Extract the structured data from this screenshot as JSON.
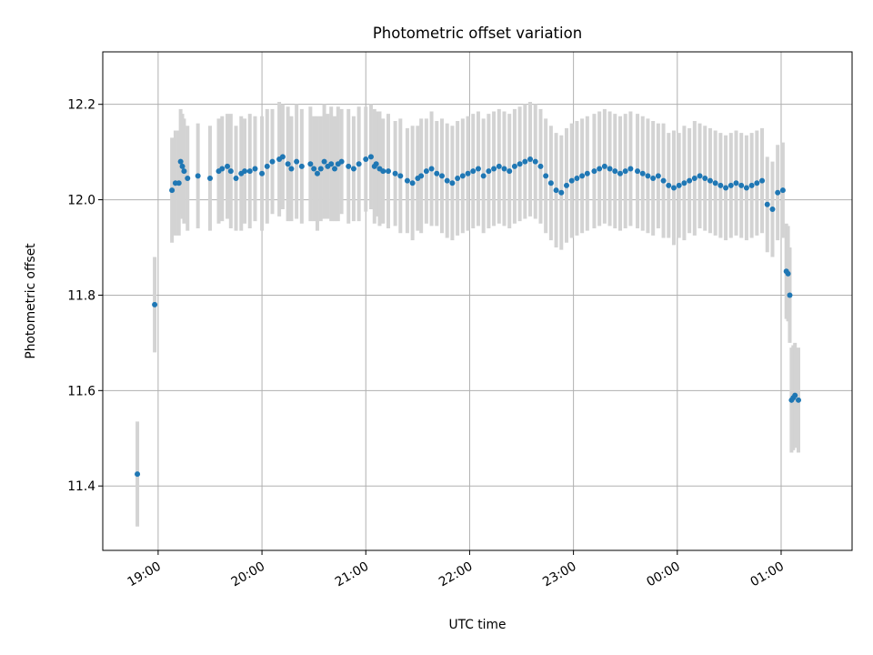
{
  "chart_data": {
    "type": "scatter",
    "title": "Photometric offset variation",
    "xlabel": "UTC time",
    "ylabel": "Photometric offset",
    "grid": true,
    "xlim": [
      "18:28",
      "01:41"
    ],
    "ylim": [
      11.265,
      12.31
    ],
    "xticks": [
      "19:00",
      "20:00",
      "21:00",
      "22:00",
      "23:00",
      "00:00",
      "01:00"
    ],
    "yticks": [
      11.4,
      11.6,
      11.8,
      12.0,
      12.2
    ],
    "point_color": "#1f77b4",
    "errorbar_color": "#d3d3d3",
    "series": [
      {
        "x": [
          "18:48",
          "18:58",
          "19:08",
          "19:10",
          "19:12",
          "19:13",
          "19:14",
          "19:15",
          "19:17",
          "19:23",
          "19:30",
          "19:35",
          "19:37",
          "19:40",
          "19:42",
          "19:45",
          "19:48",
          "19:50",
          "19:53",
          "19:56",
          "20:00",
          "20:03",
          "20:06",
          "20:10",
          "20:12",
          "20:15",
          "20:17",
          "20:20",
          "20:23",
          "20:28",
          "20:30",
          "20:32",
          "20:34",
          "20:36",
          "20:38",
          "20:40",
          "20:42",
          "20:44",
          "20:46",
          "20:50",
          "20:53",
          "20:56",
          "21:00",
          "21:03",
          "21:05",
          "21:06",
          "21:08",
          "21:10",
          "21:13",
          "21:17",
          "21:20",
          "21:24",
          "21:27",
          "21:30",
          "21:32",
          "21:35",
          "21:38",
          "21:41",
          "21:44",
          "21:47",
          "21:50",
          "21:53",
          "21:56",
          "21:59",
          "22:02",
          "22:05",
          "22:08",
          "22:11",
          "22:14",
          "22:17",
          "22:20",
          "22:23",
          "22:26",
          "22:29",
          "22:32",
          "22:35",
          "22:38",
          "22:41",
          "22:44",
          "22:47",
          "22:50",
          "22:53",
          "22:56",
          "22:59",
          "23:02",
          "23:05",
          "23:08",
          "23:12",
          "23:15",
          "23:18",
          "23:21",
          "23:24",
          "23:27",
          "23:30",
          "23:33",
          "23:37",
          "23:40",
          "23:43",
          "23:46",
          "23:49",
          "23:52",
          "23:55",
          "23:58",
          "00:01",
          "00:04",
          "00:07",
          "00:10",
          "00:13",
          "00:16",
          "00:19",
          "00:22",
          "00:25",
          "00:28",
          "00:31",
          "00:34",
          "00:37",
          "00:40",
          "00:43",
          "00:46",
          "00:49",
          "00:52",
          "00:55",
          "00:58",
          "01:01",
          "01:03",
          "01:04",
          "01:05",
          "01:06",
          "01:07",
          "01:08",
          "01:10"
        ],
        "y": [
          11.425,
          11.78,
          12.02,
          12.035,
          12.035,
          12.08,
          12.07,
          12.06,
          12.045,
          12.05,
          12.045,
          12.06,
          12.065,
          12.07,
          12.06,
          12.045,
          12.055,
          12.06,
          12.06,
          12.065,
          12.055,
          12.07,
          12.08,
          12.085,
          12.09,
          12.075,
          12.065,
          12.08,
          12.07,
          12.075,
          12.065,
          12.055,
          12.065,
          12.08,
          12.07,
          12.075,
          12.065,
          12.075,
          12.08,
          12.07,
          12.065,
          12.075,
          12.085,
          12.09,
          12.07,
          12.075,
          12.065,
          12.06,
          12.06,
          12.055,
          12.05,
          12.04,
          12.035,
          12.045,
          12.05,
          12.06,
          12.065,
          12.055,
          12.05,
          12.04,
          12.035,
          12.045,
          12.05,
          12.055,
          12.06,
          12.065,
          12.05,
          12.06,
          12.065,
          12.07,
          12.065,
          12.06,
          12.07,
          12.075,
          12.08,
          12.085,
          12.08,
          12.07,
          12.05,
          12.035,
          12.02,
          12.015,
          12.03,
          12.04,
          12.045,
          12.05,
          12.055,
          12.06,
          12.065,
          12.07,
          12.065,
          12.06,
          12.055,
          12.06,
          12.065,
          12.06,
          12.055,
          12.05,
          12.045,
          12.05,
          12.04,
          12.03,
          12.025,
          12.03,
          12.035,
          12.04,
          12.045,
          12.05,
          12.045,
          12.04,
          12.035,
          12.03,
          12.025,
          12.03,
          12.035,
          12.03,
          12.025,
          12.03,
          12.035,
          12.04,
          11.99,
          11.98,
          12.015,
          12.02,
          11.85,
          11.845,
          11.8,
          11.58,
          11.585,
          11.59,
          11.58
        ],
        "yerr": [
          0.11,
          0.1,
          0.11,
          0.11,
          0.11,
          0.11,
          0.11,
          0.11,
          0.11,
          0.11,
          0.11,
          0.11,
          0.11,
          0.11,
          0.12,
          0.11,
          0.12,
          0.11,
          0.12,
          0.11,
          0.12,
          0.12,
          0.11,
          0.12,
          0.11,
          0.12,
          0.11,
          0.12,
          0.12,
          0.12,
          0.11,
          0.12,
          0.11,
          0.12,
          0.11,
          0.12,
          0.11,
          0.12,
          0.11,
          0.12,
          0.11,
          0.12,
          0.11,
          0.11,
          0.12,
          0.11,
          0.12,
          0.11,
          0.12,
          0.11,
          0.12,
          0.11,
          0.12,
          0.11,
          0.12,
          0.11,
          0.12,
          0.11,
          0.12,
          0.12,
          0.12,
          0.12,
          0.12,
          0.12,
          0.12,
          0.12,
          0.12,
          0.12,
          0.12,
          0.12,
          0.12,
          0.12,
          0.12,
          0.12,
          0.12,
          0.12,
          0.12,
          0.12,
          0.12,
          0.12,
          0.12,
          0.12,
          0.12,
          0.12,
          0.12,
          0.12,
          0.12,
          0.12,
          0.12,
          0.12,
          0.12,
          0.12,
          0.12,
          0.12,
          0.12,
          0.12,
          0.12,
          0.12,
          0.12,
          0.11,
          0.12,
          0.11,
          0.12,
          0.11,
          0.12,
          0.11,
          0.12,
          0.11,
          0.11,
          0.11,
          0.11,
          0.11,
          0.11,
          0.11,
          0.11,
          0.11,
          0.11,
          0.11,
          0.11,
          0.11,
          0.1,
          0.1,
          0.1,
          0.1,
          0.1,
          0.1,
          0.1,
          0.11,
          0.11,
          0.11,
          0.11
        ]
      }
    ]
  }
}
